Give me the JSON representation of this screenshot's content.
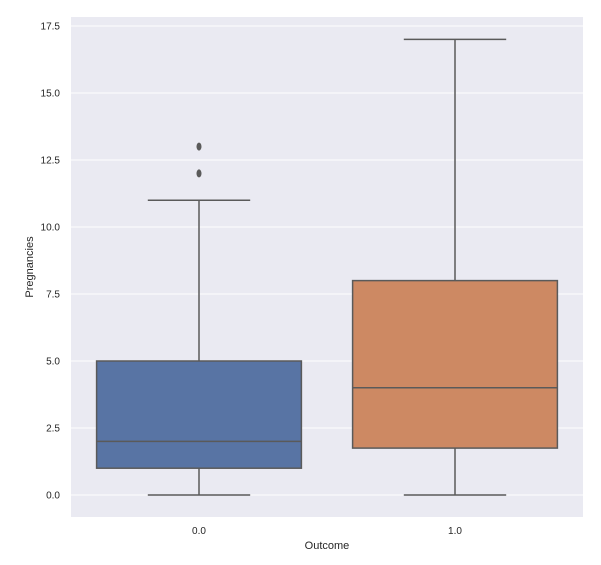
{
  "chart_data": {
    "type": "box",
    "title": "",
    "xlabel": "Outcome",
    "ylabel": "Pregnancies",
    "categories": [
      "0.0",
      "1.0"
    ],
    "ylim": [
      -0.875,
      18.0
    ],
    "yticks": [
      "0.0",
      "2.5",
      "5.0",
      "7.5",
      "10.0",
      "12.5",
      "15.0",
      "17.5"
    ],
    "ytick_values": [
      0,
      2.5,
      5,
      7.5,
      10,
      12.5,
      15,
      17.5
    ],
    "grid": true,
    "legend": null,
    "series": [
      {
        "name": "0.0",
        "color": "#5874a4",
        "whisker_low": 0,
        "q1": 1,
        "median": 2,
        "q3": 5,
        "whisker_high": 11,
        "outliers": [
          12,
          13
        ]
      },
      {
        "name": "1.0",
        "color": "#cd8963",
        "whisker_low": 0,
        "q1": 1.75,
        "median": 4,
        "q3": 8,
        "whisker_high": 17,
        "outliers": []
      }
    ]
  },
  "style": {
    "background": "#eaeaf2",
    "grid_color": "#ffffff",
    "line_color": "#5a5a5a"
  }
}
